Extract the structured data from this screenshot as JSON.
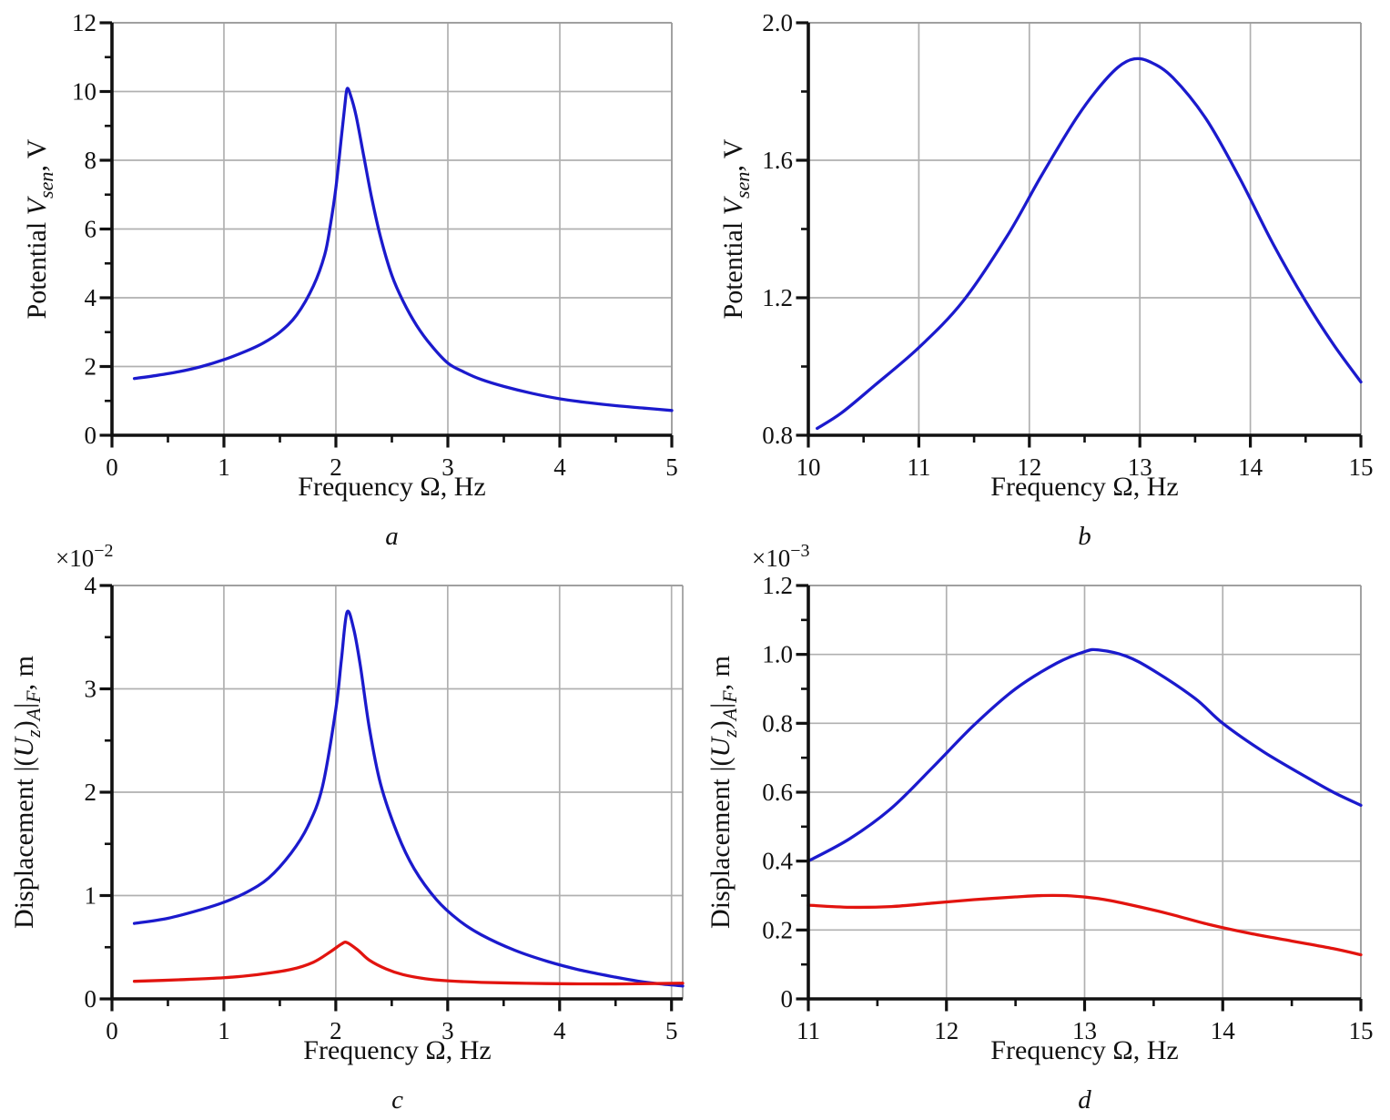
{
  "figure": {
    "background": "#ffffff",
    "grid_color": "#b0b0b0",
    "frame_color": "#9b9b9b",
    "axis_color": "#111111",
    "blue_color": "#1b1acd",
    "red_color": "#e2140f"
  },
  "chart_data": [
    {
      "id": "a",
      "type": "line",
      "caption": "a",
      "grid": "on",
      "legend": "none",
      "x_axis": {
        "title_segments": [
          {
            "t": "Frequency Ω, Hz"
          }
        ],
        "min": 0,
        "max": 5,
        "major_ticks": [
          0,
          1,
          2,
          3,
          4,
          5
        ],
        "tick_labels": [
          "0",
          "1",
          "2",
          "3",
          "4",
          "5"
        ],
        "minor_ticks": [
          0.5,
          1.5,
          2.5,
          3.5,
          4.5
        ]
      },
      "y_axis": {
        "title_segments": [
          {
            "t": "Potential "
          },
          {
            "t": "V",
            "italic": true
          },
          {
            "t": "sen",
            "sub": true,
            "italic": true
          },
          {
            "t": ", V"
          }
        ],
        "min": 0,
        "max": 12,
        "major_ticks": [
          0,
          2,
          4,
          6,
          8,
          10,
          12
        ],
        "tick_labels": [
          "0",
          "2",
          "4",
          "6",
          "8",
          "10",
          "12"
        ],
        "minor_ticks": [
          1,
          3,
          5,
          7,
          9,
          11
        ]
      },
      "series": [
        {
          "name": "blue-curve",
          "color": "#1b1acd",
          "points": [
            [
              0.2,
              1.65
            ],
            [
              0.4,
              1.74
            ],
            [
              0.6,
              1.85
            ],
            [
              0.8,
              2.0
            ],
            [
              1.0,
              2.2
            ],
            [
              1.2,
              2.45
            ],
            [
              1.35,
              2.68
            ],
            [
              1.5,
              3.0
            ],
            [
              1.65,
              3.5
            ],
            [
              1.8,
              4.35
            ],
            [
              1.9,
              5.25
            ],
            [
              1.95,
              6.1
            ],
            [
              2.0,
              7.2
            ],
            [
              2.05,
              8.7
            ],
            [
              2.08,
              9.6
            ],
            [
              2.1,
              10.08
            ],
            [
              2.13,
              9.9
            ],
            [
              2.18,
              9.3
            ],
            [
              2.25,
              8.1
            ],
            [
              2.32,
              6.9
            ],
            [
              2.4,
              5.75
            ],
            [
              2.5,
              4.65
            ],
            [
              2.6,
              3.9
            ],
            [
              2.72,
              3.2
            ],
            [
              2.85,
              2.62
            ],
            [
              3.0,
              2.1
            ],
            [
              3.15,
              1.83
            ],
            [
              3.3,
              1.62
            ],
            [
              3.5,
              1.42
            ],
            [
              3.75,
              1.22
            ],
            [
              4.0,
              1.06
            ],
            [
              4.25,
              0.95
            ],
            [
              4.5,
              0.86
            ],
            [
              4.75,
              0.79
            ],
            [
              5.0,
              0.72
            ]
          ]
        }
      ]
    },
    {
      "id": "b",
      "type": "line",
      "caption": "b",
      "grid": "on",
      "legend": "none",
      "x_axis": {
        "title_segments": [
          {
            "t": "Frequency Ω, Hz"
          }
        ],
        "min": 10,
        "max": 15,
        "major_ticks": [
          10,
          11,
          12,
          13,
          14,
          15
        ],
        "tick_labels": [
          "10",
          "11",
          "12",
          "13",
          "14",
          "15"
        ],
        "minor_ticks": [
          10.5,
          11.5,
          12.5,
          13.5,
          14.5
        ]
      },
      "y_axis": {
        "title_segments": [
          {
            "t": "Potential "
          },
          {
            "t": "V",
            "italic": true
          },
          {
            "t": "sen",
            "sub": true,
            "italic": true
          },
          {
            "t": ", V"
          }
        ],
        "min": 0.8,
        "max": 2.0,
        "major_ticks": [
          0.8,
          1.2,
          1.6,
          2.0
        ],
        "tick_labels": [
          "0.8",
          "1.2",
          "1.6",
          "2.0"
        ],
        "minor_ticks": [
          1.0,
          1.4,
          1.8
        ]
      },
      "series": [
        {
          "name": "blue-curve",
          "color": "#1b1acd",
          "points": [
            [
              10.08,
              0.82
            ],
            [
              10.3,
              0.865
            ],
            [
              10.6,
              0.945
            ],
            [
              11.0,
              1.055
            ],
            [
              11.4,
              1.19
            ],
            [
              11.8,
              1.38
            ],
            [
              12.1,
              1.55
            ],
            [
              12.4,
              1.71
            ],
            [
              12.6,
              1.8
            ],
            [
              12.8,
              1.87
            ],
            [
              12.95,
              1.895
            ],
            [
              13.1,
              1.885
            ],
            [
              13.3,
              1.84
            ],
            [
              13.6,
              1.72
            ],
            [
              13.9,
              1.55
            ],
            [
              14.2,
              1.36
            ],
            [
              14.5,
              1.19
            ],
            [
              14.75,
              1.065
            ],
            [
              15.0,
              0.955
            ]
          ]
        }
      ]
    },
    {
      "id": "c",
      "type": "line",
      "caption": "c",
      "grid": "on",
      "legend": "none",
      "x_axis": {
        "title_segments": [
          {
            "t": "Frequency Ω, Hz"
          }
        ],
        "min": 0,
        "max": 5.1,
        "major_ticks": [
          0,
          1,
          2,
          3,
          4,
          5
        ],
        "tick_labels": [
          "0",
          "1",
          "2",
          "3",
          "4",
          "5"
        ],
        "minor_ticks": [
          0.5,
          1.5,
          2.5,
          3.5,
          4.5
        ]
      },
      "y_axis": {
        "title_segments": [
          {
            "t": "Displacement |("
          },
          {
            "t": "U",
            "italic": true
          },
          {
            "t": "z",
            "sub": true,
            "italic": true
          },
          {
            "t": ")"
          },
          {
            "t": "A",
            "sub": true,
            "italic": true
          },
          {
            "t": "|"
          },
          {
            "t": "F",
            "sub": true,
            "italic": true
          },
          {
            "t": ", m"
          }
        ],
        "exponent_segments": [
          {
            "t": "×10"
          },
          {
            "t": "−2",
            "sup": true
          }
        ],
        "min": 0,
        "max": 4,
        "major_ticks": [
          0,
          1,
          2,
          3,
          4
        ],
        "tick_labels": [
          "0",
          "1",
          "2",
          "3",
          "4"
        ],
        "minor_ticks": [
          0.5,
          1.5,
          2.5,
          3.5
        ]
      },
      "series": [
        {
          "name": "blue-curve",
          "color": "#1b1acd",
          "points": [
            [
              0.2,
              0.73
            ],
            [
              0.5,
              0.78
            ],
            [
              0.8,
              0.865
            ],
            [
              1.0,
              0.935
            ],
            [
              1.2,
              1.03
            ],
            [
              1.4,
              1.17
            ],
            [
              1.6,
              1.41
            ],
            [
              1.75,
              1.67
            ],
            [
              1.88,
              2.05
            ],
            [
              2.0,
              2.8
            ],
            [
              2.05,
              3.28
            ],
            [
              2.1,
              3.74
            ],
            [
              2.16,
              3.58
            ],
            [
              2.22,
              3.22
            ],
            [
              2.3,
              2.62
            ],
            [
              2.4,
              2.08
            ],
            [
              2.55,
              1.6
            ],
            [
              2.7,
              1.26
            ],
            [
              2.9,
              0.96
            ],
            [
              3.1,
              0.76
            ],
            [
              3.3,
              0.62
            ],
            [
              3.6,
              0.47
            ],
            [
              3.9,
              0.36
            ],
            [
              4.2,
              0.275
            ],
            [
              4.5,
              0.21
            ],
            [
              4.7,
              0.172
            ],
            [
              4.9,
              0.145
            ],
            [
              5.1,
              0.125
            ]
          ]
        },
        {
          "name": "red-curve",
          "color": "#e2140f",
          "points": [
            [
              0.2,
              0.17
            ],
            [
              0.6,
              0.185
            ],
            [
              1.0,
              0.205
            ],
            [
              1.3,
              0.235
            ],
            [
              1.6,
              0.285
            ],
            [
              1.8,
              0.355
            ],
            [
              1.95,
              0.455
            ],
            [
              2.05,
              0.53
            ],
            [
              2.1,
              0.545
            ],
            [
              2.2,
              0.47
            ],
            [
              2.3,
              0.375
            ],
            [
              2.45,
              0.29
            ],
            [
              2.6,
              0.235
            ],
            [
              2.8,
              0.195
            ],
            [
              3.0,
              0.175
            ],
            [
              3.3,
              0.16
            ],
            [
              3.7,
              0.151
            ],
            [
              4.1,
              0.146
            ],
            [
              4.5,
              0.145
            ],
            [
              4.8,
              0.148
            ],
            [
              5.1,
              0.152
            ]
          ]
        }
      ]
    },
    {
      "id": "d",
      "type": "line",
      "caption": "d",
      "grid": "on",
      "legend": "none",
      "x_axis": {
        "title_segments": [
          {
            "t": "Frequency Ω, Hz"
          }
        ],
        "min": 11,
        "max": 15,
        "major_ticks": [
          11,
          12,
          13,
          14,
          15
        ],
        "tick_labels": [
          "11",
          "12",
          "13",
          "14",
          "15"
        ],
        "minor_ticks": [
          11.5,
          12.5,
          13.5,
          14.5
        ]
      },
      "y_axis": {
        "title_segments": [
          {
            "t": "Displacement |("
          },
          {
            "t": "U",
            "italic": true
          },
          {
            "t": "z",
            "sub": true,
            "italic": true
          },
          {
            "t": ")"
          },
          {
            "t": "A",
            "sub": true,
            "italic": true
          },
          {
            "t": "|"
          },
          {
            "t": "F",
            "sub": true,
            "italic": true
          },
          {
            "t": ", m"
          }
        ],
        "exponent_segments": [
          {
            "t": "×10"
          },
          {
            "t": "−3",
            "sup": true
          }
        ],
        "min": 0,
        "max": 1.2,
        "major_ticks": [
          0,
          0.2,
          0.4,
          0.6,
          0.8,
          1.0,
          1.2
        ],
        "tick_labels": [
          "0",
          "0.2",
          "0.4",
          "0.6",
          "0.8",
          "1.0",
          "1.2"
        ],
        "minor_ticks": [
          0.1,
          0.3,
          0.5,
          0.7,
          0.9,
          1.1
        ]
      },
      "series": [
        {
          "name": "blue-curve",
          "color": "#1b1acd",
          "points": [
            [
              11.0,
              0.4
            ],
            [
              11.3,
              0.465
            ],
            [
              11.6,
              0.553
            ],
            [
              11.9,
              0.672
            ],
            [
              12.2,
              0.795
            ],
            [
              12.5,
              0.9
            ],
            [
              12.8,
              0.975
            ],
            [
              13.0,
              1.008
            ],
            [
              13.1,
              1.013
            ],
            [
              13.3,
              0.995
            ],
            [
              13.5,
              0.953
            ],
            [
              13.8,
              0.872
            ],
            [
              14.0,
              0.8
            ],
            [
              14.3,
              0.716
            ],
            [
              14.6,
              0.645
            ],
            [
              14.8,
              0.6
            ],
            [
              15.0,
              0.562
            ]
          ]
        },
        {
          "name": "red-curve",
          "color": "#e2140f",
          "points": [
            [
              11.0,
              0.272
            ],
            [
              11.3,
              0.266
            ],
            [
              11.6,
              0.268
            ],
            [
              11.9,
              0.278
            ],
            [
              12.2,
              0.288
            ],
            [
              12.5,
              0.296
            ],
            [
              12.7,
              0.3
            ],
            [
              12.9,
              0.299
            ],
            [
              13.1,
              0.291
            ],
            [
              13.3,
              0.276
            ],
            [
              13.6,
              0.248
            ],
            [
              13.9,
              0.216
            ],
            [
              14.2,
              0.19
            ],
            [
              14.5,
              0.168
            ],
            [
              14.8,
              0.146
            ],
            [
              15.0,
              0.128
            ]
          ]
        }
      ]
    }
  ]
}
